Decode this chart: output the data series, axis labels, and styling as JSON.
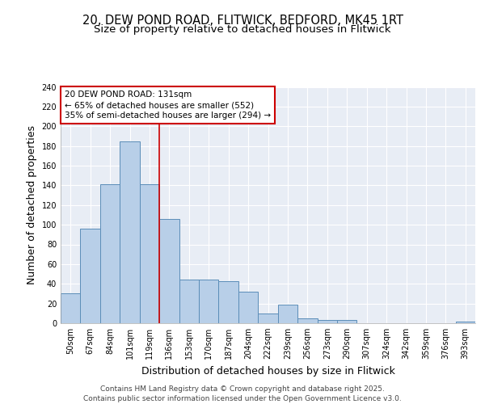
{
  "title_line1": "20, DEW POND ROAD, FLITWICK, BEDFORD, MK45 1RT",
  "title_line2": "Size of property relative to detached houses in Flitwick",
  "xlabel": "Distribution of detached houses by size in Flitwick",
  "ylabel": "Number of detached properties",
  "categories": [
    "50sqm",
    "67sqm",
    "84sqm",
    "101sqm",
    "119sqm",
    "136sqm",
    "153sqm",
    "170sqm",
    "187sqm",
    "204sqm",
    "222sqm",
    "239sqm",
    "256sqm",
    "273sqm",
    "290sqm",
    "307sqm",
    "324sqm",
    "342sqm",
    "359sqm",
    "376sqm",
    "393sqm"
  ],
  "values": [
    30,
    96,
    141,
    185,
    141,
    106,
    44,
    44,
    43,
    32,
    10,
    19,
    5,
    3,
    3,
    0,
    0,
    0,
    0,
    0,
    2
  ],
  "bar_color": "#b8cfe8",
  "bar_edge_color": "#5b8db8",
  "background_color": "#e8edf5",
  "fig_background_color": "#ffffff",
  "grid_color": "#ffffff",
  "annotation_text_line1": "20 DEW POND ROAD: 131sqm",
  "annotation_text_line2": "← 65% of detached houses are smaller (552)",
  "annotation_text_line3": "35% of semi-detached houses are larger (294) →",
  "annotation_box_edgecolor": "#cc0000",
  "vline_color": "#cc0000",
  "vline_x": 4.5,
  "ylim": [
    0,
    240
  ],
  "yticks": [
    0,
    20,
    40,
    60,
    80,
    100,
    120,
    140,
    160,
    180,
    200,
    220,
    240
  ],
  "footer": "Contains HM Land Registry data © Crown copyright and database right 2025.\nContains public sector information licensed under the Open Government Licence v3.0.",
  "title_fontsize": 10.5,
  "subtitle_fontsize": 9.5,
  "axis_label_fontsize": 9,
  "tick_fontsize": 7,
  "annotation_fontsize": 7.5,
  "footer_fontsize": 6.5
}
